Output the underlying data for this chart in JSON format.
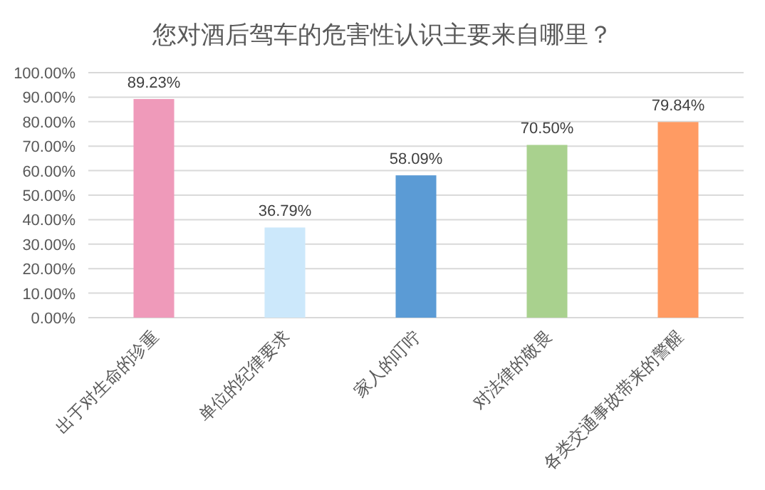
{
  "chart_data": {
    "type": "bar",
    "title": "您对酒后驾车的危害性认识主要来自哪里？",
    "categories": [
      "出于对生命的珍重",
      "单位的纪律要求",
      "家人的叮咛",
      "对法律的敬畏",
      "各类交通事故带来的警醒"
    ],
    "values": [
      89.23,
      36.79,
      58.09,
      70.5,
      79.84
    ],
    "value_labels": [
      "89.23%",
      "36.79%",
      "58.09%",
      "70.50%",
      "79.84%"
    ],
    "colors": [
      "#ef9aba",
      "#cce8fb",
      "#5b9bd5",
      "#a9d18e",
      "#ff9b63"
    ],
    "ylim": [
      0,
      100
    ],
    "yticks": [
      {
        "value": 0,
        "label": "0.00%"
      },
      {
        "value": 10,
        "label": "10.00%"
      },
      {
        "value": 20,
        "label": "20.00%"
      },
      {
        "value": 30,
        "label": "30.00%"
      },
      {
        "value": 40,
        "label": "40.00%"
      },
      {
        "value": 50,
        "label": "50.00%"
      },
      {
        "value": 60,
        "label": "60.00%"
      },
      {
        "value": 70,
        "label": "70.00%"
      },
      {
        "value": 80,
        "label": "80.00%"
      },
      {
        "value": 90,
        "label": "90.00%"
      },
      {
        "value": 100,
        "label": "100.00%"
      }
    ],
    "grid": "y"
  }
}
